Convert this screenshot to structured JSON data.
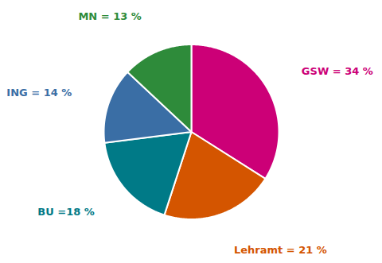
{
  "chart_data": {
    "type": "pie",
    "categories": [
      "GSW = 34 %",
      "Lehramt = 21 %",
      "BU =18 %",
      "ING = 14 %",
      "MN = 13 %"
    ],
    "values": [
      34,
      21,
      18,
      14,
      13
    ],
    "colors": [
      "#CC0077",
      "#D45500",
      "#007A87",
      "#3A6EA5",
      "#2E8B3A"
    ],
    "tick_labels": false
  }
}
